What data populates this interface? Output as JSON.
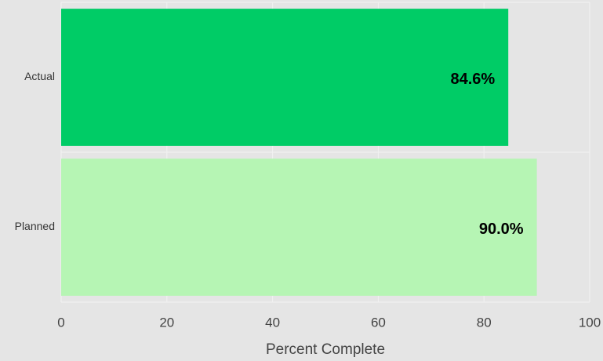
{
  "chart_data": {
    "type": "barh",
    "categories": [
      "Actual",
      "Planned"
    ],
    "values": [
      84.6,
      90.0
    ],
    "value_labels": [
      "84.6%",
      "90.0%"
    ],
    "colors": [
      "#00cc66",
      "#b6f5b4"
    ],
    "x_label": "Percent Complete",
    "xlim": [
      0,
      100
    ],
    "xticks": [
      0,
      20,
      40,
      60,
      80,
      100
    ],
    "grid": true
  }
}
